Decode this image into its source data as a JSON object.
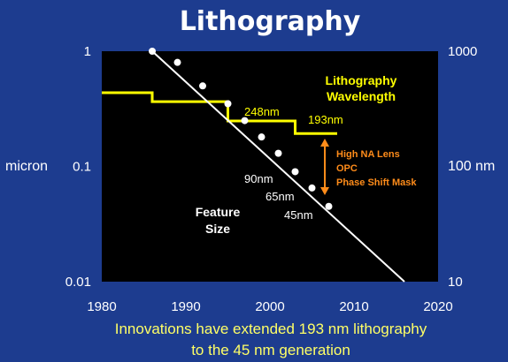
{
  "slide": {
    "title": "Lithography",
    "caption_line1": "Innovations have extended 193 nm lithography",
    "caption_line2": "to the 45 nm generation"
  },
  "colors": {
    "background": "#1d3c8f",
    "plot_bg": "#000000",
    "feature_line": "#ffffff",
    "wavelength_line": "#ffff00",
    "arrow": "#ff8c1a",
    "caption": "#ffff66"
  },
  "chart_data": {
    "type": "line",
    "x": {
      "label": "",
      "range": [
        1980,
        2020
      ],
      "ticks": [
        "1980",
        "1990",
        "2000",
        "2010",
        "2020"
      ]
    },
    "y_left": {
      "label": "micron",
      "scale": "log",
      "range": [
        0.01,
        1
      ],
      "ticks": [
        "1",
        "0.1",
        "0.01"
      ]
    },
    "y_right": {
      "label": "100 nm",
      "scale": "log",
      "range": [
        10,
        1000
      ],
      "ticks": [
        "1000",
        "10"
      ]
    },
    "series": [
      {
        "name": "Feature Size",
        "kind": "markers+trend",
        "points": [
          [
            1986,
            1.0
          ],
          [
            1989,
            0.8
          ],
          [
            1992,
            0.5
          ],
          [
            1995,
            0.35
          ],
          [
            1997,
            0.25
          ],
          [
            1999,
            0.18
          ],
          [
            2001,
            0.13
          ],
          [
            2003,
            0.09
          ],
          [
            2005,
            0.065
          ],
          [
            2007,
            0.045
          ]
        ],
        "trend": [
          [
            1986,
            1.0
          ],
          [
            2016,
            0.01
          ]
        ]
      },
      {
        "name": "Lithography Wavelength",
        "kind": "step",
        "points": [
          [
            1980,
            0.436
          ],
          [
            1986,
            0.436
          ],
          [
            1986,
            0.365
          ],
          [
            1995,
            0.365
          ],
          [
            1995,
            0.248
          ],
          [
            2003,
            0.248
          ],
          [
            2003,
            0.193
          ],
          [
            2008,
            0.193
          ]
        ]
      }
    ],
    "annotations": {
      "wavelength_title_1": "Lithography",
      "wavelength_title_2": "Wavelength",
      "w248": "248nm",
      "w193": "193nm",
      "n90": "90nm",
      "n65": "65nm",
      "n45": "45nm",
      "feature_1": "Feature",
      "feature_2": "Size",
      "tech_1": "High NA Lens",
      "tech_2": "OPC",
      "tech_3": "Phase Shift Mask"
    }
  }
}
